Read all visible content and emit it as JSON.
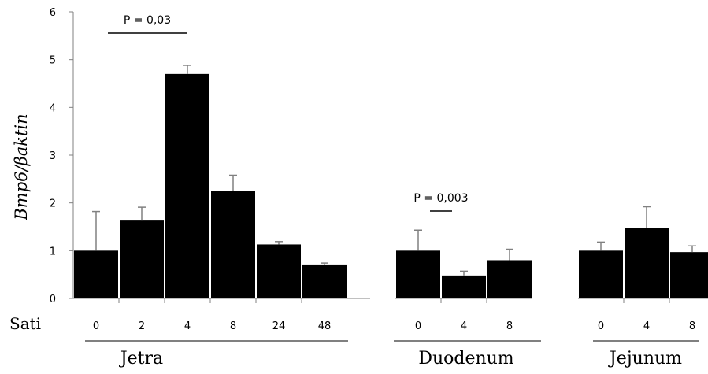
{
  "chart_data": {
    "type": "bar",
    "ylabel": "Bmp6/βaktin",
    "ylim": [
      0,
      6
    ],
    "yticks": [
      "0",
      "1",
      "2",
      "3",
      "4",
      "5",
      "6"
    ],
    "row_label": "Sati",
    "grid": false,
    "groups": [
      {
        "name": "Jetra",
        "categories": [
          "0",
          "2",
          "4",
          "8",
          "24",
          "48"
        ],
        "values": [
          1.0,
          1.63,
          4.7,
          2.25,
          1.13,
          0.71
        ],
        "errors": [
          0.82,
          0.28,
          0.18,
          0.33,
          0.06,
          0.03
        ]
      },
      {
        "name": "Duodenum",
        "categories": [
          "0",
          "4",
          "8"
        ],
        "values": [
          1.0,
          0.48,
          0.8
        ],
        "errors": [
          0.43,
          0.09,
          0.23
        ]
      },
      {
        "name": "Jejunum",
        "categories": [
          "0",
          "4",
          "8"
        ],
        "values": [
          1.0,
          1.47,
          0.97
        ],
        "errors": [
          0.18,
          0.45,
          0.13
        ]
      }
    ],
    "annotations": [
      {
        "text": "P = 0,03",
        "group": 0,
        "from": 0,
        "to": 2
      },
      {
        "text": "P = 0,003",
        "group": 1,
        "from": 0,
        "to": 1
      }
    ],
    "colors": {
      "bar": "#000000",
      "axis": "#808080"
    }
  }
}
